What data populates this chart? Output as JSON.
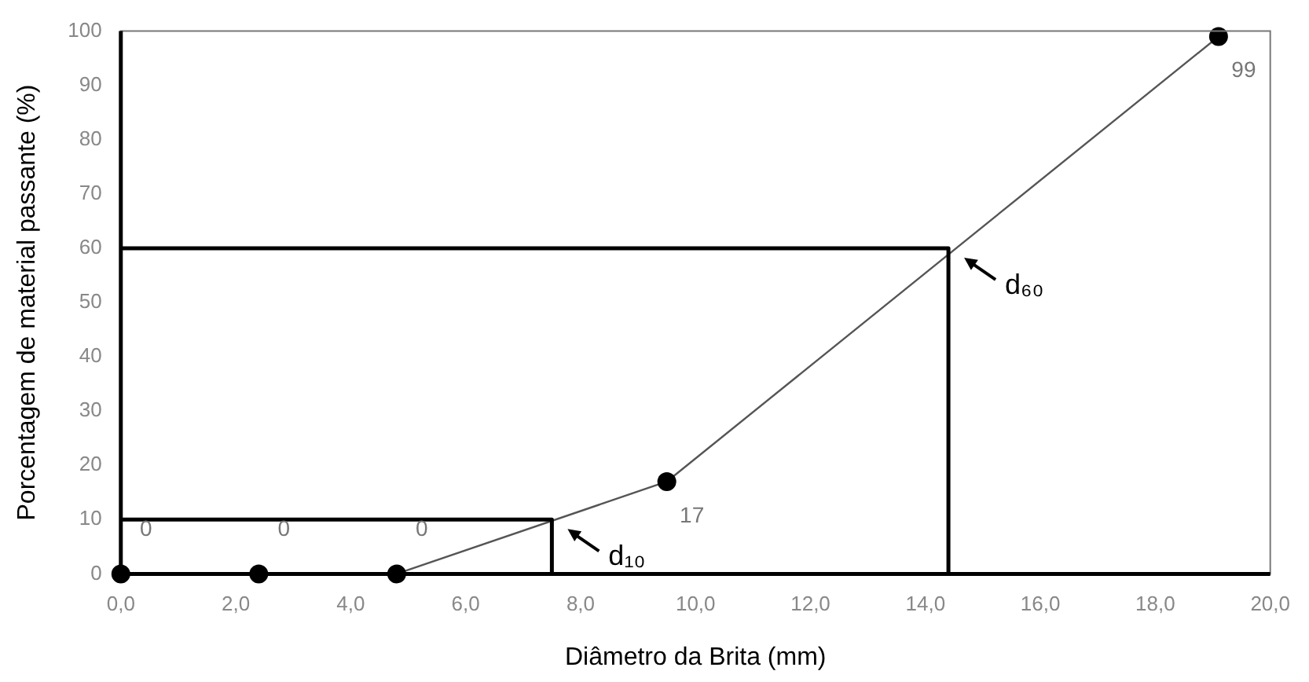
{
  "chart_data": {
    "type": "line",
    "xlabel": "Diâmetro da Brita (mm)",
    "ylabel": "Porcentagem de material passante (%)",
    "xlim": [
      0,
      20
    ],
    "xticks": [
      {
        "value": 0,
        "label": "0,0"
      },
      {
        "value": 2,
        "label": "2,0"
      },
      {
        "value": 4,
        "label": "4,0"
      },
      {
        "value": 6,
        "label": "6,0"
      },
      {
        "value": 8,
        "label": "8,0"
      },
      {
        "value": 10,
        "label": "10,0"
      },
      {
        "value": 12,
        "label": "12,0"
      },
      {
        "value": 14,
        "label": "14,0"
      },
      {
        "value": 16,
        "label": "16,0"
      },
      {
        "value": 18,
        "label": "18,0"
      },
      {
        "value": 20,
        "label": "20,0"
      }
    ],
    "ylim": [
      0,
      100
    ],
    "yticks": [
      0,
      10,
      20,
      30,
      40,
      50,
      60,
      70,
      80,
      90,
      100
    ],
    "grid": false,
    "legend": false,
    "series": [
      {
        "color": "#000000",
        "marker": "none",
        "x": [
          0,
          7.5,
          7.5
        ],
        "values": [
          10,
          10,
          0
        ]
      },
      {
        "color": "#000000",
        "marker": "none",
        "x": [
          0,
          14.4,
          14.4
        ],
        "values": [
          60,
          60,
          0
        ]
      },
      {
        "color": "#000000",
        "marker": "circle",
        "x": [
          0,
          2.4,
          4.8,
          9.5,
          19.1
        ],
        "values": [
          0,
          0,
          0,
          17,
          99
        ],
        "value_labels": [
          "0",
          "0",
          "0",
          "17",
          "99"
        ]
      }
    ],
    "annotations": [
      {
        "text": "d₁₀",
        "x": 7.5,
        "y": 10
      },
      {
        "text": "d₆₀",
        "x": 14.4,
        "y": 60
      }
    ]
  }
}
